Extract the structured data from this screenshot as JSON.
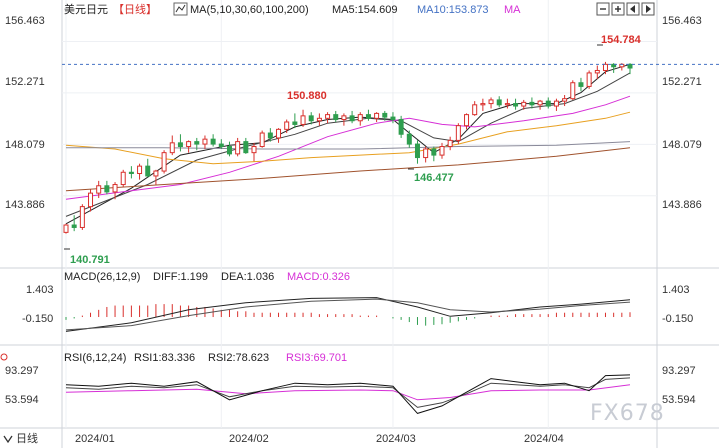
{
  "header": {
    "symbol": "美元日元",
    "period_tag": "【日线】",
    "ma_label": "MA(5,10,30,60,100,200)",
    "ma5": "MA5:154.609",
    "ma10": "MA10:153.873",
    "ma_more": "MA"
  },
  "toolbar": {
    "icons": [
      "zoom-out-icon",
      "zoom-in-icon",
      "pan-left-icon",
      "pan-right-icon"
    ]
  },
  "price_axis": [
    "156.463",
    "152.271",
    "148.079",
    "143.886"
  ],
  "annotations": {
    "high": "154.784",
    "peak_feb": "150.880",
    "low_mar": "146.477",
    "low_jan": "140.791"
  },
  "macd_header": {
    "params": "MACD(26,12,9)",
    "diff": "DIFF:1.199",
    "dea": "DEA:1.036",
    "macd": "MACD:0.326"
  },
  "macd_axis": [
    "1.403",
    "-0.150"
  ],
  "rsi_header": {
    "params": "RSI(6,12,24)",
    "rsi1": "RSI1:83.336",
    "rsi2": "RSI2:78.623",
    "rsi3": "RSI3:69.701"
  },
  "rsi_axis": [
    "93.297",
    "53.594"
  ],
  "x_axis": [
    "2024/01",
    "2024/02",
    "2024/03",
    "2024/04"
  ],
  "period_footer": "日线",
  "watermark": "FX678",
  "colors": {
    "up": "#d9302c",
    "down": "#2e9e4f",
    "ma5": "#222222",
    "ma10": "#444444",
    "ma_magenta": "#d62fd6",
    "ma_orange": "#e8a020",
    "ma_gray": "#8a8a9a",
    "ma_brown": "#a0522d",
    "dashed": "#4472c4"
  },
  "chart_data": {
    "type": "candlestick",
    "ylim": [
      139.3,
      157.4
    ],
    "ohlc": [
      [
        140.9,
        141.6,
        140.8,
        141.5
      ],
      [
        141.5,
        142.3,
        141.0,
        141.3
      ],
      [
        141.3,
        143.2,
        141.1,
        143.0
      ],
      [
        143.0,
        144.4,
        142.6,
        144.1
      ],
      [
        144.1,
        145.1,
        143.7,
        144.7
      ],
      [
        144.7,
        145.1,
        144.0,
        144.2
      ],
      [
        144.2,
        145.0,
        143.6,
        144.8
      ],
      [
        144.8,
        146.0,
        144.6,
        145.8
      ],
      [
        145.8,
        146.3,
        145.3,
        145.7
      ],
      [
        145.7,
        146.5,
        145.2,
        146.3
      ],
      [
        146.3,
        146.9,
        145.4,
        145.5
      ],
      [
        145.5,
        146.0,
        144.8,
        145.9
      ],
      [
        145.9,
        147.6,
        145.7,
        147.4
      ],
      [
        147.4,
        148.8,
        147.2,
        148.2
      ],
      [
        148.2,
        148.9,
        147.5,
        147.9
      ],
      [
        147.9,
        148.4,
        147.4,
        148.3
      ],
      [
        148.3,
        148.6,
        147.6,
        148.1
      ],
      [
        148.1,
        148.8,
        147.7,
        148.5
      ],
      [
        148.5,
        148.9,
        147.9,
        148.1
      ],
      [
        148.1,
        148.5,
        147.7,
        147.9
      ],
      [
        147.9,
        148.3,
        147.1,
        147.3
      ],
      [
        147.3,
        148.6,
        147.1,
        148.3
      ],
      [
        148.3,
        148.6,
        147.3,
        147.4
      ],
      [
        147.4,
        148.2,
        146.7,
        147.9
      ],
      [
        147.9,
        149.2,
        147.8,
        149.0
      ],
      [
        149.0,
        149.4,
        148.3,
        148.6
      ],
      [
        148.6,
        149.4,
        148.2,
        149.3
      ],
      [
        149.3,
        150.1,
        149.0,
        149.9
      ],
      [
        149.9,
        150.6,
        149.4,
        149.7
      ],
      [
        149.7,
        150.9,
        149.5,
        150.4
      ],
      [
        150.4,
        150.7,
        149.7,
        150.0
      ],
      [
        150.0,
        150.6,
        149.6,
        150.2
      ],
      [
        150.2,
        150.7,
        149.8,
        150.5
      ],
      [
        150.5,
        150.8,
        149.9,
        150.1
      ],
      [
        150.1,
        150.6,
        149.6,
        150.4
      ],
      [
        150.4,
        150.8,
        149.8,
        150.0
      ],
      [
        150.0,
        150.7,
        149.6,
        150.5
      ],
      [
        150.5,
        150.9,
        150.0,
        150.2
      ],
      [
        150.2,
        150.7,
        149.9,
        150.6
      ],
      [
        150.6,
        150.8,
        150.0,
        150.3
      ],
      [
        150.3,
        150.7,
        149.8,
        150.1
      ],
      [
        150.1,
        150.4,
        148.6,
        148.9
      ],
      [
        148.9,
        149.2,
        147.8,
        148.1
      ],
      [
        148.1,
        148.4,
        146.5,
        147.0
      ],
      [
        147.0,
        147.9,
        146.6,
        147.7
      ],
      [
        147.7,
        147.9,
        146.7,
        147.2
      ],
      [
        147.2,
        148.2,
        146.9,
        147.9
      ],
      [
        147.9,
        148.7,
        147.6,
        148.4
      ],
      [
        148.4,
        149.8,
        148.1,
        149.6
      ],
      [
        149.6,
        150.6,
        149.3,
        150.5
      ],
      [
        150.5,
        151.6,
        150.4,
        151.3
      ],
      [
        151.3,
        151.8,
        150.8,
        151.4
      ],
      [
        151.4,
        151.9,
        151.0,
        151.7
      ],
      [
        151.7,
        152.0,
        151.1,
        151.3
      ],
      [
        151.3,
        151.8,
        151.0,
        151.4
      ],
      [
        151.4,
        151.8,
        150.9,
        151.2
      ],
      [
        151.2,
        151.7,
        150.9,
        151.5
      ],
      [
        151.5,
        151.9,
        151.0,
        151.3
      ],
      [
        151.3,
        151.7,
        150.9,
        151.6
      ],
      [
        151.6,
        151.9,
        151.0,
        151.2
      ],
      [
        151.2,
        151.8,
        150.8,
        151.6
      ],
      [
        151.6,
        152.1,
        151.2,
        151.8
      ],
      [
        151.8,
        153.3,
        151.7,
        153.1
      ],
      [
        153.1,
        153.5,
        152.4,
        152.8
      ],
      [
        152.8,
        154.1,
        152.6,
        153.9
      ],
      [
        153.9,
        154.5,
        153.4,
        154.1
      ],
      [
        154.1,
        154.8,
        153.8,
        154.6
      ],
      [
        154.6,
        154.7,
        153.9,
        154.4
      ],
      [
        154.4,
        154.7,
        154.1,
        154.6
      ],
      [
        154.6,
        154.7,
        153.8,
        154.3
      ]
    ],
    "last_price": 154.6,
    "ma_series": [
      {
        "name": "MA5",
        "pts": [
          [
            0,
            141.6
          ],
          [
            8,
            144.5
          ],
          [
            14,
            147.2
          ],
          [
            20,
            148.0
          ],
          [
            24,
            148.2
          ],
          [
            28,
            149.5
          ],
          [
            32,
            150.1
          ],
          [
            36,
            150.3
          ],
          [
            40,
            150.1
          ],
          [
            42,
            149.0
          ],
          [
            45,
            147.4
          ],
          [
            48,
            148.5
          ],
          [
            51,
            150.6
          ],
          [
            55,
            151.4
          ],
          [
            60,
            151.4
          ],
          [
            63,
            152.3
          ],
          [
            66,
            154.0
          ],
          [
            69,
            154.6
          ]
        ]
      },
      {
        "name": "MA10",
        "pts": [
          [
            0,
            142.2
          ],
          [
            10,
            144.8
          ],
          [
            16,
            146.8
          ],
          [
            22,
            147.9
          ],
          [
            28,
            148.9
          ],
          [
            32,
            149.8
          ],
          [
            37,
            150.2
          ],
          [
            41,
            150.0
          ],
          [
            45,
            148.6
          ],
          [
            48,
            148.3
          ],
          [
            52,
            149.8
          ],
          [
            56,
            151.0
          ],
          [
            61,
            151.4
          ],
          [
            65,
            152.4
          ],
          [
            69,
            153.9
          ]
        ]
      },
      {
        "name": "MA30",
        "pts": [
          [
            0,
            143.6
          ],
          [
            8,
            144.3
          ],
          [
            14,
            144.8
          ],
          [
            20,
            145.8
          ],
          [
            26,
            147.1
          ],
          [
            32,
            148.7
          ],
          [
            38,
            149.8
          ],
          [
            42,
            150.2
          ],
          [
            46,
            149.7
          ],
          [
            50,
            149.5
          ],
          [
            56,
            150.0
          ],
          [
            62,
            150.6
          ],
          [
            66,
            151.3
          ],
          [
            69,
            152.0
          ]
        ]
      },
      {
        "name": "MA60",
        "pts": [
          [
            0,
            148.0
          ],
          [
            6,
            147.7
          ],
          [
            12,
            146.9
          ],
          [
            18,
            146.5
          ],
          [
            24,
            146.7
          ],
          [
            30,
            147.0
          ],
          [
            36,
            147.2
          ],
          [
            42,
            147.4
          ],
          [
            48,
            148.1
          ],
          [
            54,
            149.1
          ],
          [
            60,
            149.6
          ],
          [
            66,
            150.2
          ],
          [
            69,
            150.7
          ]
        ]
      },
      {
        "name": "MA100",
        "pts": [
          [
            0,
            147.8
          ],
          [
            12,
            147.8
          ],
          [
            24,
            147.7
          ],
          [
            36,
            147.7
          ],
          [
            48,
            147.9
          ],
          [
            60,
            148.0
          ],
          [
            69,
            148.3
          ]
        ]
      },
      {
        "name": "MA200",
        "pts": [
          [
            0,
            144.3
          ],
          [
            12,
            144.8
          ],
          [
            24,
            145.3
          ],
          [
            36,
            145.9
          ],
          [
            48,
            146.4
          ],
          [
            60,
            147.1
          ],
          [
            69,
            147.8
          ]
        ]
      }
    ],
    "macd": {
      "ylim": [
        -1.6,
        2.3
      ],
      "diff": [
        [
          0,
          -1.0
        ],
        [
          8,
          -0.4
        ],
        [
          15,
          0.5
        ],
        [
          22,
          1.0
        ],
        [
          30,
          1.3
        ],
        [
          38,
          1.35
        ],
        [
          43,
          0.7
        ],
        [
          47,
          0.05
        ],
        [
          52,
          0.3
        ],
        [
          58,
          0.7
        ],
        [
          63,
          0.9
        ],
        [
          69,
          1.2
        ]
      ],
      "dea": [
        [
          0,
          -0.9
        ],
        [
          8,
          -0.6
        ],
        [
          15,
          0.1
        ],
        [
          22,
          0.7
        ],
        [
          30,
          1.1
        ],
        [
          38,
          1.25
        ],
        [
          43,
          1.0
        ],
        [
          47,
          0.5
        ],
        [
          52,
          0.35
        ],
        [
          58,
          0.55
        ],
        [
          63,
          0.8
        ],
        [
          69,
          1.04
        ]
      ],
      "hist": [
        -0.2,
        -0.1,
        0.1,
        0.3,
        0.5,
        0.7,
        0.8,
        0.8,
        0.8,
        0.8,
        0.8,
        0.9,
        0.9,
        0.9,
        0.8,
        0.8,
        0.7,
        0.7,
        0.6,
        0.5,
        0.5,
        0.4,
        0.4,
        0.3,
        0.3,
        0.3,
        0.3,
        0.3,
        0.3,
        0.3,
        0.3,
        0.2,
        0.2,
        0.2,
        0.2,
        0.2,
        0.1,
        0.1,
        0.1,
        0.0,
        -0.1,
        -0.2,
        -0.35,
        -0.55,
        -0.6,
        -0.55,
        -0.5,
        -0.4,
        -0.3,
        -0.2,
        -0.1,
        0.0,
        0.1,
        0.1,
        0.1,
        0.2,
        0.2,
        0.2,
        0.2,
        0.2,
        0.3,
        0.3,
        0.3,
        0.3,
        0.3,
        0.3,
        0.3,
        0.3,
        0.3,
        0.33
      ]
    },
    "rsi": {
      "ylim": [
        18,
        100
      ],
      "rsi1": [
        [
          0,
          70
        ],
        [
          4,
          68
        ],
        [
          8,
          72
        ],
        [
          12,
          68
        ],
        [
          16,
          74
        ],
        [
          20,
          50
        ],
        [
          24,
          62
        ],
        [
          28,
          72
        ],
        [
          32,
          70
        ],
        [
          36,
          72
        ],
        [
          40,
          68
        ],
        [
          43,
          32
        ],
        [
          46,
          42
        ],
        [
          49,
          60
        ],
        [
          52,
          78
        ],
        [
          55,
          74
        ],
        [
          58,
          70
        ],
        [
          61,
          72
        ],
        [
          64,
          62
        ],
        [
          66,
          82
        ],
        [
          69,
          83
        ]
      ],
      "rsi2": [
        [
          0,
          66
        ],
        [
          4,
          64
        ],
        [
          8,
          68
        ],
        [
          12,
          66
        ],
        [
          16,
          70
        ],
        [
          20,
          54
        ],
        [
          24,
          62
        ],
        [
          28,
          68
        ],
        [
          32,
          67
        ],
        [
          36,
          68
        ],
        [
          40,
          66
        ],
        [
          43,
          40
        ],
        [
          46,
          46
        ],
        [
          49,
          58
        ],
        [
          52,
          72
        ],
        [
          55,
          70
        ],
        [
          58,
          68
        ],
        [
          61,
          70
        ],
        [
          64,
          66
        ],
        [
          66,
          77
        ],
        [
          69,
          79
        ]
      ],
      "rsi3": [
        [
          0,
          60
        ],
        [
          8,
          62
        ],
        [
          16,
          64
        ],
        [
          22,
          58
        ],
        [
          28,
          62
        ],
        [
          36,
          63
        ],
        [
          40,
          62
        ],
        [
          43,
          50
        ],
        [
          47,
          53
        ],
        [
          52,
          62
        ],
        [
          58,
          63
        ],
        [
          64,
          63
        ],
        [
          69,
          70
        ]
      ]
    }
  }
}
